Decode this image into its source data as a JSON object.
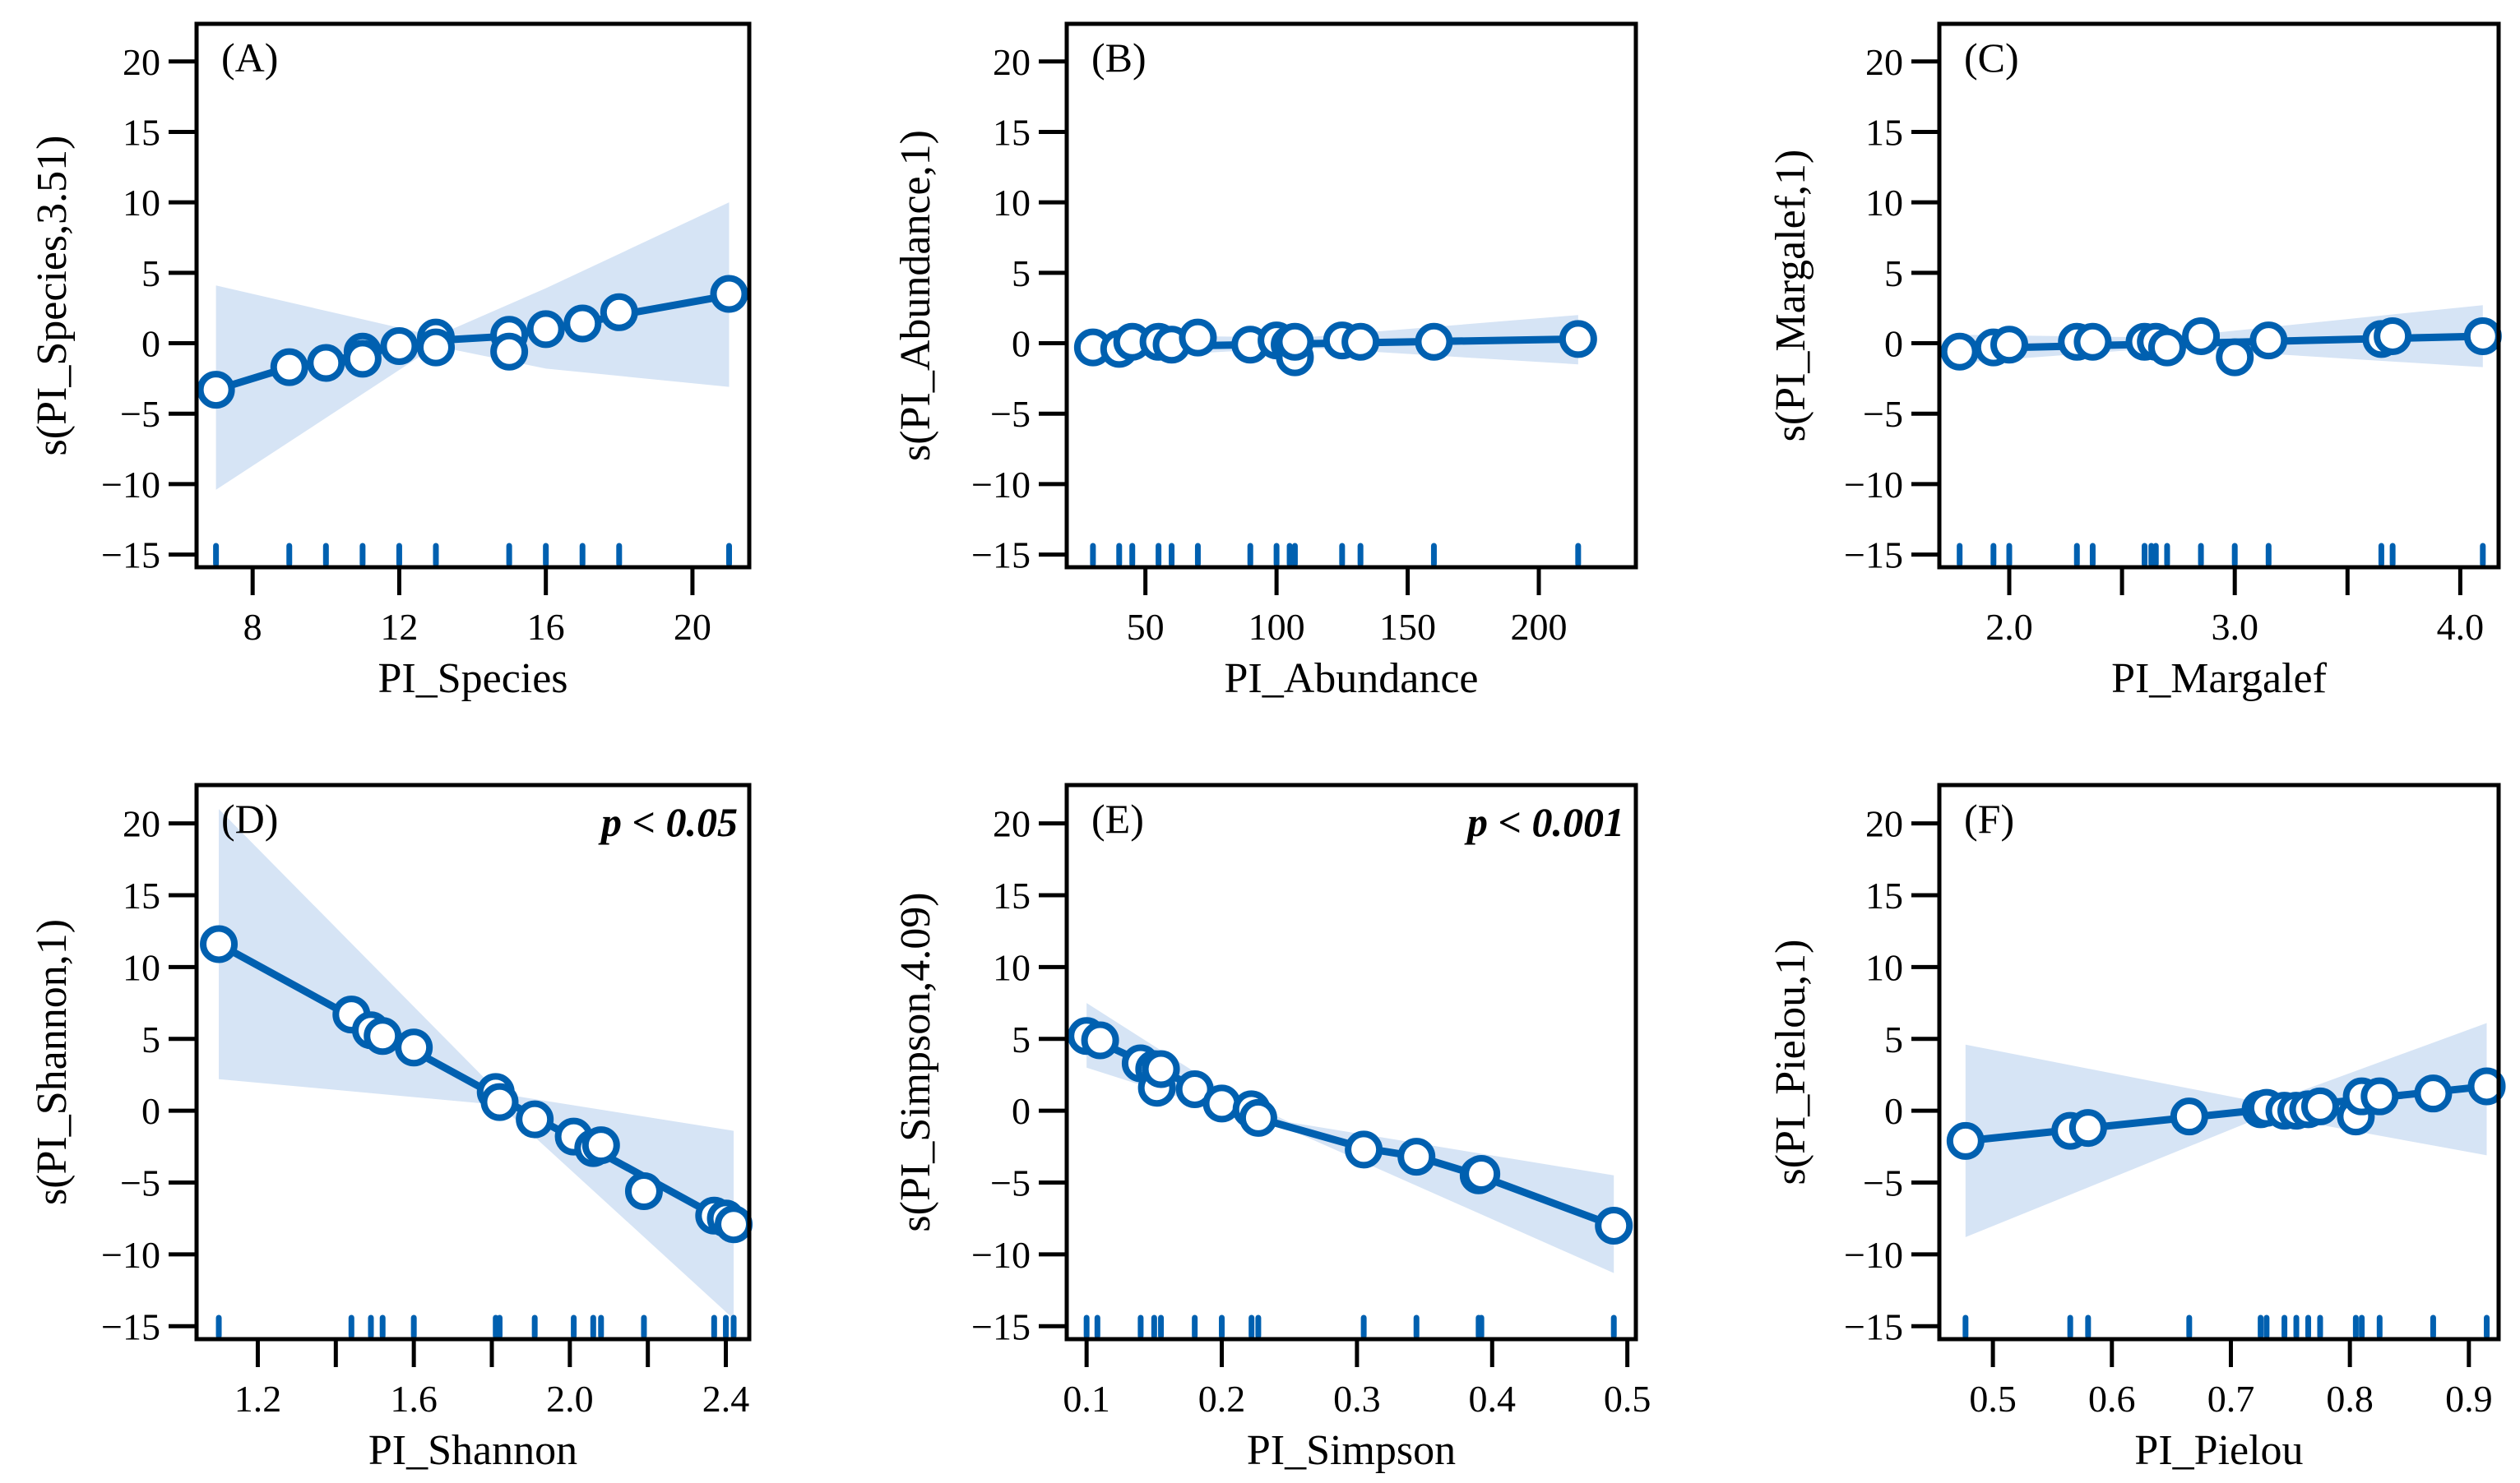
{
  "colors": {
    "line": "#0060b0",
    "band": "#d6e4f5",
    "axis": "#000000"
  },
  "chart_data": [
    {
      "type": "scatter",
      "panel_label": "(A)",
      "pvalue": "",
      "xlabel": "PI_Species",
      "ylabel": "s(PI_Species,3.51)",
      "xlim": [
        6.47,
        21.55
      ],
      "ylim": [
        -15.9,
        22.67
      ],
      "xticks": [
        8,
        12,
        16,
        20
      ],
      "xtick_labels": [
        "8",
        "12",
        "16",
        "20"
      ],
      "yticks": [
        20,
        15,
        10,
        5,
        0,
        -5,
        -10,
        -15
      ],
      "ytick_labels": [
        "20",
        "15",
        "10",
        "5",
        "0",
        "−5",
        "−10",
        "−15"
      ],
      "points": {
        "x": [
          7,
          9,
          10,
          11,
          11,
          12,
          13,
          13,
          15,
          15,
          16,
          17,
          18,
          21
        ],
        "y": [
          -3.3,
          -1.7,
          -1.4,
          -0.6,
          -1.1,
          -0.2,
          0.4,
          -0.3,
          0.6,
          -0.6,
          1.0,
          1.4,
          2.2,
          3.5
        ]
      },
      "fit": {
        "x": [
          7,
          9,
          10,
          11,
          12,
          13,
          15,
          16,
          17,
          18,
          21
        ],
        "y": [
          -3.3,
          -1.7,
          -1.3,
          -0.8,
          -0.2,
          0.2,
          0.5,
          1.0,
          1.4,
          2.0,
          3.4
        ]
      },
      "band": {
        "x": [
          7,
          13,
          16,
          21
        ],
        "upper": [
          4.1,
          0.5,
          3.9,
          10
        ],
        "lower": [
          -10.4,
          -0.2,
          -1.8,
          -3.1
        ]
      },
      "rug": [
        7,
        9,
        10,
        11,
        12,
        13,
        15,
        16,
        17,
        18,
        21
      ]
    },
    {
      "type": "scatter",
      "panel_label": "(B)",
      "pvalue": "",
      "xlabel": "PI_Abundance",
      "ylabel": "s(PI_Abundance,1)",
      "xlim": [
        20,
        237
      ],
      "ylim": [
        -15.9,
        22.67
      ],
      "xticks": [
        50,
        100,
        150,
        200
      ],
      "xtick_labels": [
        "50",
        "100",
        "150",
        "200"
      ],
      "yticks": [
        20,
        15,
        10,
        5,
        0,
        -5,
        -10,
        -15
      ],
      "ytick_labels": [
        "20",
        "15",
        "10",
        "5",
        "0",
        "−5",
        "−10",
        "−15"
      ],
      "points": {
        "x": [
          30,
          40,
          45,
          55,
          60,
          70,
          90,
          100,
          105,
          107,
          107,
          125,
          132,
          160,
          215
        ],
        "y": [
          -0.3,
          -0.4,
          0.1,
          0.1,
          -0.1,
          0.4,
          -0.1,
          0.2,
          -0.1,
          -1.0,
          0.1,
          0.2,
          0.1,
          0.1,
          0.3
        ]
      },
      "fit": {
        "x": [
          30,
          215
        ],
        "y": [
          -0.3,
          0.3
        ]
      },
      "band": {
        "x": [
          30,
          110,
          215
        ],
        "upper": [
          0.6,
          0.4,
          2.0
        ],
        "lower": [
          -1.1,
          -0.3,
          -1.5
        ]
      },
      "rug": [
        30,
        40,
        45,
        55,
        60,
        70,
        90,
        100,
        105,
        107,
        125,
        132,
        160,
        215
      ]
    },
    {
      "type": "scatter",
      "panel_label": "(C)",
      "pvalue": "",
      "xlabel": "PI_Margalef",
      "ylabel": "s(PI_Margalef,1)",
      "xlim": [
        1.69,
        4.17
      ],
      "ylim": [
        -15.9,
        22.67
      ],
      "xticks": [
        2.0,
        2.5,
        3.0,
        3.5,
        4.0
      ],
      "xtick_labels": [
        "2.0",
        "",
        "3.0",
        "",
        "4.0"
      ],
      "yticks": [
        20,
        15,
        10,
        5,
        0,
        -5,
        -10,
        -15
      ],
      "ytick_labels": [
        "20",
        "15",
        "10",
        "5",
        "0",
        "−5",
        "−10",
        "−15"
      ],
      "points": {
        "x": [
          1.78,
          1.93,
          2.0,
          2.3,
          2.37,
          2.6,
          2.65,
          2.7,
          2.85,
          3.0,
          3.15,
          3.65,
          3.7,
          4.1
        ],
        "y": [
          -0.6,
          -0.3,
          -0.1,
          0.1,
          0.1,
          0.1,
          0.1,
          -0.3,
          0.5,
          -1.0,
          0.2,
          0.3,
          0.5,
          0.5
        ]
      },
      "fit": {
        "x": [
          1.78,
          4.1
        ],
        "y": [
          -0.4,
          0.5
        ]
      },
      "band": {
        "x": [
          1.78,
          2.7,
          4.1
        ],
        "upper": [
          0.6,
          0.4,
          2.7
        ],
        "lower": [
          -1.4,
          -0.3,
          -1.7
        ]
      },
      "rug": [
        1.78,
        1.93,
        2.0,
        2.3,
        2.37,
        2.6,
        2.63,
        2.65,
        2.7,
        2.85,
        3.0,
        3.15,
        3.65,
        3.7,
        4.1
      ]
    },
    {
      "type": "scatter",
      "panel_label": "(D)",
      "pvalue": "p < 0.05",
      "xlabel": "PI_Shannon",
      "ylabel": "s(PI_Shannon,1)",
      "xlim": [
        1.043,
        2.46
      ],
      "ylim": [
        -15.9,
        22.67
      ],
      "xticks": [
        1.2,
        1.4,
        1.6,
        1.8,
        2.0,
        2.2,
        2.4
      ],
      "xtick_labels": [
        "1.2",
        "",
        "1.6",
        "",
        "2.0",
        "",
        "2.4"
      ],
      "yticks": [
        20,
        15,
        10,
        5,
        0,
        -5,
        -10,
        -15
      ],
      "ytick_labels": [
        "20",
        "15",
        "10",
        "5",
        "0",
        "−5",
        "−10",
        "−15"
      ],
      "points": {
        "x": [
          1.1,
          1.44,
          1.49,
          1.52,
          1.6,
          1.81,
          1.82,
          1.91,
          2.01,
          2.06,
          2.08,
          2.19,
          2.37,
          2.4,
          2.42
        ],
        "y": [
          11.6,
          6.7,
          5.6,
          5.2,
          4.4,
          1.3,
          0.6,
          -0.6,
          -1.8,
          -2.6,
          -2.4,
          -5.6,
          -7.3,
          -7.5,
          -7.9
        ]
      },
      "fit": {
        "x": [
          1.1,
          2.42
        ],
        "y": [
          11.6,
          -8.0
        ]
      },
      "band": {
        "x": [
          1.1,
          1.82,
          2.42
        ],
        "upper": [
          21,
          1.2,
          -1.4
        ],
        "lower": [
          2.2,
          0.4,
          -14.5
        ]
      },
      "rug": [
        1.1,
        1.44,
        1.49,
        1.52,
        1.6,
        1.81,
        1.82,
        1.91,
        2.01,
        2.06,
        2.08,
        2.19,
        2.37,
        2.4,
        2.42
      ]
    },
    {
      "type": "scatter",
      "panel_label": "(E)",
      "pvalue": "p < 0.001",
      "xlabel": "PI_Simpson",
      "ylabel": "s(PI_Simpson,4.09)",
      "xlim": [
        0.0853,
        0.5063
      ],
      "ylim": [
        -15.9,
        22.67
      ],
      "xticks": [
        0.1,
        0.2,
        0.3,
        0.4,
        0.5
      ],
      "xtick_labels": [
        "0.1",
        "0.2",
        "0.3",
        "0.4",
        "0.5"
      ],
      "yticks": [
        20,
        15,
        10,
        5,
        0,
        -5,
        -10,
        -15
      ],
      "ytick_labels": [
        "20",
        "15",
        "10",
        "5",
        "0",
        "−5",
        "−10",
        "−15"
      ],
      "points": {
        "x": [
          0.1,
          0.11,
          0.14,
          0.15,
          0.152,
          0.155,
          0.18,
          0.2,
          0.222,
          0.227,
          0.305,
          0.344,
          0.39,
          0.392,
          0.49
        ],
        "y": [
          5.2,
          4.9,
          3.3,
          2.9,
          1.6,
          2.9,
          1.5,
          0.5,
          0.1,
          -0.5,
          -2.7,
          -3.2,
          -4.5,
          -4.4,
          -8.0
        ]
      },
      "fit": {
        "x": [
          0.1,
          0.15,
          0.2,
          0.23,
          0.305,
          0.345,
          0.39,
          0.49
        ],
        "y": [
          5.2,
          3.0,
          0.8,
          -0.6,
          -2.6,
          -3.2,
          -4.5,
          -8.0
        ]
      },
      "band": {
        "x": [
          0.1,
          0.2,
          0.25,
          0.49
        ],
        "upper": [
          7.5,
          1.5,
          -0.8,
          -4.5
        ],
        "lower": [
          3.0,
          0.0,
          -1.3,
          -11.3
        ]
      },
      "rug": [
        0.1,
        0.108,
        0.14,
        0.15,
        0.155,
        0.18,
        0.2,
        0.222,
        0.227,
        0.305,
        0.344,
        0.39,
        0.392,
        0.49
      ]
    },
    {
      "type": "scatter",
      "panel_label": "(F)",
      "pvalue": "",
      "xlabel": "PI_Pielou",
      "ylabel": "s(PI_Pielou,1)",
      "xlim": [
        0.455,
        0.925
      ],
      "ylim": [
        -15.9,
        22.67
      ],
      "xticks": [
        0.5,
        0.6,
        0.7,
        0.8,
        0.9
      ],
      "xtick_labels": [
        "0.5",
        "0.6",
        "0.7",
        "0.8",
        "0.9"
      ],
      "yticks": [
        20,
        15,
        10,
        5,
        0,
        -5,
        -10,
        -15
      ],
      "ytick_labels": [
        "20",
        "15",
        "10",
        "5",
        "0",
        "−5",
        "−10",
        "−15"
      ],
      "points": {
        "x": [
          0.477,
          0.565,
          0.58,
          0.665,
          0.725,
          0.73,
          0.745,
          0.755,
          0.765,
          0.775,
          0.805,
          0.81,
          0.825,
          0.87,
          0.915
        ],
        "y": [
          -2.1,
          -1.4,
          -1.2,
          -0.4,
          0.1,
          0.2,
          0.0,
          0.0,
          0.1,
          0.3,
          -0.4,
          1.0,
          1.0,
          1.2,
          1.7
        ]
      },
      "fit": {
        "x": [
          0.477,
          0.73,
          0.915
        ],
        "y": [
          -2.1,
          0.1,
          1.7
        ]
      },
      "band": {
        "x": [
          0.477,
          0.73,
          0.915
        ],
        "upper": [
          4.6,
          0.5,
          6.1
        ],
        "lower": [
          -8.8,
          -0.3,
          -3.1
        ]
      },
      "rug": [
        0.477,
        0.565,
        0.58,
        0.665,
        0.725,
        0.73,
        0.745,
        0.755,
        0.765,
        0.775,
        0.805,
        0.81,
        0.825,
        0.87,
        0.915
      ]
    }
  ]
}
